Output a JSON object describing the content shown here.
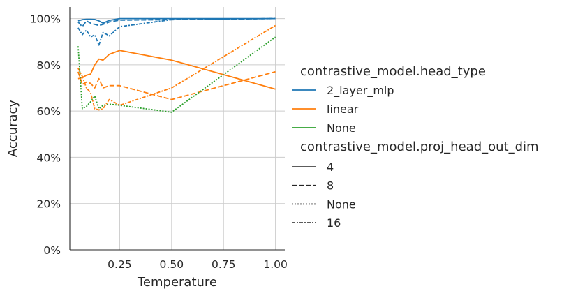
{
  "chart_data": {
    "type": "line",
    "title": "",
    "xlabel": "Temperature",
    "ylabel": "Accuracy",
    "xlim": [
      0.01,
      1.045
    ],
    "ylim": [
      0,
      1.05
    ],
    "xticks": [
      0.25,
      0.5,
      0.75,
      1.0
    ],
    "xtick_labels": [
      "0.25",
      "0.50",
      "0.75",
      "1.00"
    ],
    "yticks": [
      0,
      0.2,
      0.4,
      0.6,
      0.8,
      1.0
    ],
    "ytick_labels": [
      "0%",
      "20%",
      "40%",
      "60%",
      "80%",
      "100%"
    ],
    "grid": true,
    "legend": {
      "placement": "right",
      "hue_title": "contrastive_model.head_type",
      "hue_entries": [
        {
          "label": "2_layer_mlp",
          "color": "#1f77b4"
        },
        {
          "label": "linear",
          "color": "#ff7f0e"
        },
        {
          "label": "None",
          "color": "#2ca02c"
        }
      ],
      "style_title": "contrastive_model.proj_head_out_dim",
      "style_entries": [
        {
          "label": "4",
          "dash": "solid"
        },
        {
          "label": "8",
          "dash": "dashed"
        },
        {
          "label": "None",
          "dash": "dotted"
        },
        {
          "label": "16",
          "dash": "dashdot"
        }
      ]
    },
    "series": [
      {
        "head_type": "2_layer_mlp",
        "proj_dim": "4",
        "color": "#1f77b4",
        "dash": "solid",
        "x": [
          0.05,
          0.07,
          0.09,
          0.11,
          0.13,
          0.15,
          0.17,
          0.2,
          0.25,
          0.5,
          1.0
        ],
        "y": [
          0.99,
          0.995,
          0.997,
          0.997,
          0.996,
          0.99,
          0.98,
          0.992,
          1.0,
          1.0,
          1.0
        ]
      },
      {
        "head_type": "2_layer_mlp",
        "proj_dim": "8",
        "color": "#1f77b4",
        "dash": "dashed",
        "x": [
          0.05,
          0.07,
          0.09,
          0.11,
          0.13,
          0.15,
          0.17,
          0.2,
          0.25,
          0.5,
          1.0
        ],
        "y": [
          0.985,
          0.965,
          0.99,
          0.98,
          0.975,
          0.97,
          0.975,
          0.985,
          0.993,
          0.995,
          1.0
        ]
      },
      {
        "head_type": "2_layer_mlp",
        "proj_dim": "16",
        "color": "#1f77b4",
        "dash": "dashdot",
        "x": [
          0.05,
          0.07,
          0.09,
          0.11,
          0.13,
          0.15,
          0.17,
          0.2,
          0.25,
          0.5,
          1.0
        ],
        "y": [
          0.96,
          0.93,
          0.95,
          0.92,
          0.93,
          0.885,
          0.94,
          0.925,
          0.965,
          0.995,
          1.0
        ]
      },
      {
        "head_type": "linear",
        "proj_dim": "4",
        "color": "#ff7f0e",
        "dash": "solid",
        "x": [
          0.05,
          0.07,
          0.09,
          0.11,
          0.13,
          0.15,
          0.17,
          0.2,
          0.25,
          0.5,
          1.0
        ],
        "y": [
          0.74,
          0.745,
          0.755,
          0.76,
          0.8,
          0.825,
          0.82,
          0.845,
          0.862,
          0.82,
          0.695
        ]
      },
      {
        "head_type": "linear",
        "proj_dim": "8",
        "color": "#ff7f0e",
        "dash": "dashed",
        "x": [
          0.05,
          0.07,
          0.09,
          0.11,
          0.13,
          0.15,
          0.17,
          0.2,
          0.25,
          0.5,
          1.0
        ],
        "y": [
          0.77,
          0.715,
          0.725,
          0.72,
          0.7,
          0.74,
          0.7,
          0.71,
          0.71,
          0.65,
          0.77
        ]
      },
      {
        "head_type": "linear",
        "proj_dim": "16",
        "color": "#ff7f0e",
        "dash": "dashdot",
        "x": [
          0.05,
          0.07,
          0.09,
          0.11,
          0.13,
          0.15,
          0.17,
          0.2,
          0.25,
          0.5,
          1.0
        ],
        "y": [
          0.785,
          0.75,
          0.7,
          0.68,
          0.61,
          0.605,
          0.61,
          0.65,
          0.625,
          0.7,
          0.97
        ]
      },
      {
        "head_type": "None",
        "proj_dim": "None",
        "color": "#2ca02c",
        "dash": "dotted",
        "x": [
          0.05,
          0.07,
          0.09,
          0.11,
          0.13,
          0.15,
          0.17,
          0.2,
          0.25,
          0.5,
          1.0
        ],
        "y": [
          0.88,
          0.61,
          0.62,
          0.64,
          0.665,
          0.61,
          0.625,
          0.63,
          0.625,
          0.595,
          0.92
        ]
      }
    ]
  }
}
